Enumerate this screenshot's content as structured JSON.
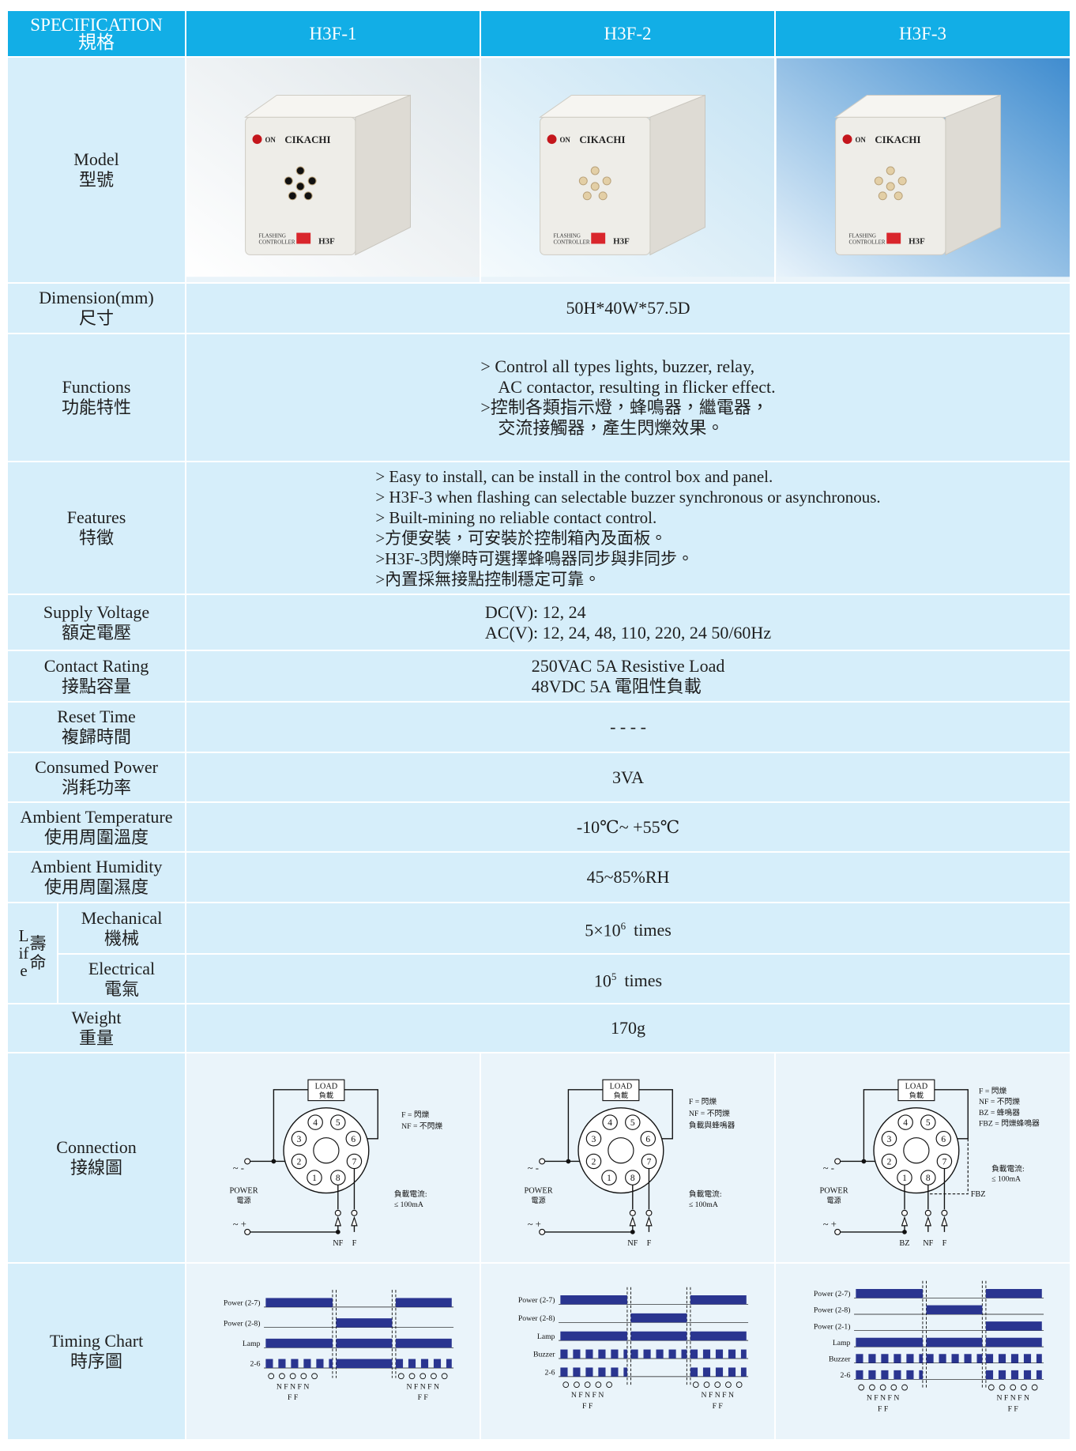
{
  "table": {
    "header": {
      "label": [
        "SPECIFICATION",
        "規格"
      ],
      "models": [
        "H3F-1",
        "H3F-2",
        "H3F-3"
      ]
    },
    "model": {
      "label": [
        "Model",
        "型號"
      ],
      "product": {
        "on": "ON",
        "brand": "CIKACHI",
        "line1": "FLASHING",
        "line2": "CONTROLLER",
        "type": "H3F"
      }
    },
    "rows": [
      {
        "label": [
          "Dimension(mm)",
          "尺寸"
        ],
        "value": [
          "50H*40W*57.5D"
        ]
      },
      {
        "label": [
          "Functions",
          "功能特性"
        ],
        "value": [
          "> Control all types lights, buzzer, relay,",
          "AC contactor, resulting in flicker effect.",
          ">控制各類指示燈，蜂鳴器，繼電器，",
          "交流接觸器，產生閃爍效果。"
        ]
      },
      {
        "label": [
          "Features",
          "特徵"
        ],
        "value": [
          "> Easy to install, can be install in the control box and panel.",
          "> H3F-3 when flashing can selectable buzzer synchronous or asynchronous.",
          "> Built-mining no reliable contact control.",
          ">方便安裝，可安裝於控制箱內及面板。",
          ">H3F-3閃爍時可選擇蜂鳴器同步與非同步。",
          ">內置採無接點控制穩定可靠。"
        ]
      },
      {
        "label": [
          "Supply Voltage",
          "額定電壓"
        ],
        "value": [
          "DC(V): 12, 24",
          "AC(V): 12, 24, 48, 110, 220, 24 50/60Hz"
        ]
      },
      {
        "label": [
          "Contact Rating",
          "接點容量"
        ],
        "value": [
          "250VAC  5A  Resistive Load",
          "48VDC  5A 電阻性負載"
        ]
      },
      {
        "label": [
          "Reset Time",
          "複歸時間"
        ],
        "value": [
          "- - - -"
        ]
      },
      {
        "label": [
          "Consumed Power",
          "消耗功率"
        ],
        "value": [
          "3VA"
        ]
      },
      {
        "label": [
          "Ambient Temperature",
          "使用周圍溫度"
        ],
        "value": [
          "-10℃~ +55℃"
        ]
      },
      {
        "label": [
          "Ambient Humidity",
          "使用周圍濕度"
        ],
        "value": [
          "45~85%RH"
        ]
      }
    ],
    "life": {
      "label": [
        "Life",
        "壽命"
      ],
      "rows": [
        {
          "label": [
            "Mechanical",
            "機械"
          ],
          "value": {
            "base": "5×10",
            "exp": "6",
            "unit": "times"
          }
        },
        {
          "label": [
            "Electrical",
            "電氣"
          ],
          "value": {
            "base": "10",
            "exp": "5",
            "unit": "times"
          }
        }
      ]
    },
    "rows_after": [
      {
        "label": [
          "Weight",
          "重量"
        ],
        "value": [
          "170g"
        ]
      }
    ],
    "connection": {
      "label": [
        "Connection",
        "接線圖"
      ],
      "load": [
        "LOAD",
        "負載"
      ],
      "power": [
        "POWER",
        "電源"
      ],
      "symbols": [
        "~ -",
        "~ +"
      ],
      "pins": [
        "1",
        "2",
        "3",
        "4",
        "5",
        "6",
        "7",
        "8"
      ],
      "diagrams": [
        {
          "legend": [
            "F = 閃爍",
            "NF = 不閃爍"
          ],
          "note": [
            "負載電流:",
            "≤ 100mA"
          ],
          "terminals": [
            "NF",
            "F"
          ]
        },
        {
          "legend": [
            "F   = 閃爍",
            "NF  = 不閃爍",
            "負載與蜂鳴器"
          ],
          "note": [
            "負載電流:",
            "≤ 100mA"
          ],
          "terminals": [
            "NF",
            "F"
          ]
        },
        {
          "legend": [
            "F    = 閃爍",
            "NF  = 不閃爍",
            "BZ  = 蜂鳴器",
            "FBZ = 閃爍蜂鳴器"
          ],
          "note": [
            "負載電流:",
            "≤ 100mA"
          ],
          "terminals": [
            "BZ",
            "NF",
            "F"
          ],
          "extra": "FBZ"
        }
      ]
    },
    "timing": {
      "label": [
        "Timing Chart",
        "時序圖"
      ],
      "bottom": [
        "N F N F N",
        "F   F"
      ],
      "charts": [
        {
          "rows": [
            "Power (2-7)",
            "Power (2-8)",
            "Lamp",
            "2-6"
          ]
        },
        {
          "rows": [
            "Power (2-7)",
            "Power (2-8)",
            "Lamp",
            "Buzzer",
            "2-6"
          ]
        },
        {
          "rows": [
            "Power (2-7)",
            "Power (2-8)",
            "Power (2-1)",
            "Lamp",
            "Buzzer",
            "2-6"
          ]
        }
      ]
    }
  }
}
